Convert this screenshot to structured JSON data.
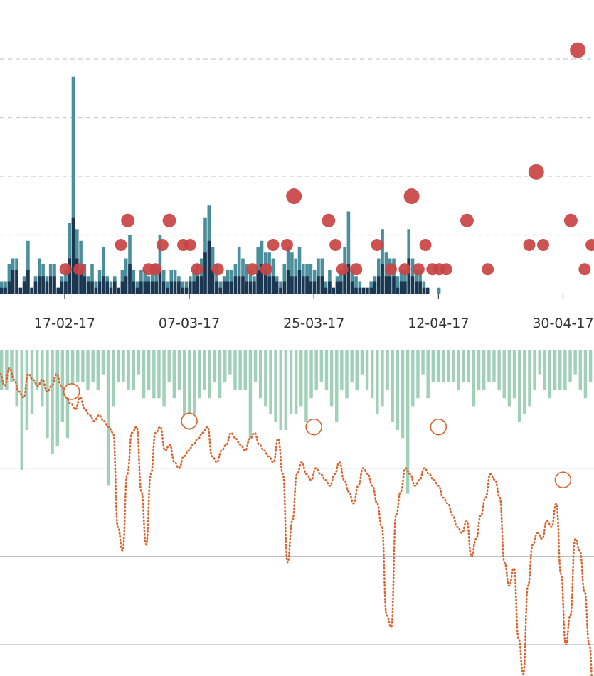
{
  "chart_data": [
    {
      "type": "bar+scatter",
      "x_start": "2017-02-13",
      "x_end": "2017-05-03",
      "x_ticks": [
        {
          "date": "2017-02-17",
          "label": "17-02-17"
        },
        {
          "date": "2017-03-07",
          "label": "07-03-17"
        },
        {
          "date": "2017-03-25",
          "label": "25-03-17"
        },
        {
          "date": "2017-04-12",
          "label": "12-04-17"
        },
        {
          "date": "2017-04-30",
          "label": "30-04-17"
        }
      ],
      "grid": "horizontal dashed",
      "y_bar_range": [
        0,
        40
      ],
      "y_bar_gridlines": [
        10,
        20,
        30,
        40
      ],
      "series": [
        {
          "color": "#4b8e9c",
          "values": [
            2,
            2,
            5,
            6,
            6,
            1,
            3,
            9,
            1,
            3,
            6,
            5,
            3,
            5,
            5,
            1,
            3,
            4,
            12,
            37,
            11,
            9,
            5,
            3,
            5,
            2,
            4,
            8,
            3,
            2,
            3,
            1,
            4,
            6,
            10,
            4,
            2,
            4,
            4,
            3,
            5,
            5,
            10,
            4,
            2,
            4,
            4,
            3,
            2,
            2,
            3,
            4,
            5,
            6,
            13,
            15,
            8,
            5,
            2,
            3,
            4,
            4,
            5,
            8,
            6,
            5,
            4,
            3,
            8,
            9,
            7,
            7,
            6,
            3,
            2,
            5,
            8,
            7,
            6,
            8,
            5,
            5,
            5,
            4,
            6,
            6,
            2,
            4,
            1,
            3,
            4,
            8,
            14,
            4,
            3,
            2,
            1,
            1,
            2,
            3,
            6,
            11,
            7,
            6,
            6,
            3,
            4,
            4,
            11,
            6,
            4,
            4,
            2,
            1,
            0,
            0,
            1
          ]
        },
        {
          "color": "#1b3650",
          "values": [
            1,
            1,
            2,
            4,
            4,
            1,
            2,
            4,
            1,
            2,
            3,
            3,
            2,
            3,
            3,
            1,
            2,
            2,
            6,
            13,
            6,
            4,
            3,
            2,
            2,
            1,
            2,
            3,
            2,
            1,
            2,
            1,
            2,
            3,
            5,
            2,
            1,
            2,
            2,
            2,
            2,
            2,
            4,
            2,
            1,
            2,
            2,
            2,
            1,
            1,
            2,
            2,
            3,
            3,
            7,
            9,
            4,
            2,
            1,
            2,
            2,
            2,
            3,
            3,
            3,
            2,
            2,
            2,
            4,
            5,
            4,
            3,
            3,
            2,
            1,
            2,
            4,
            3,
            3,
            4,
            3,
            3,
            2,
            2,
            3,
            3,
            1,
            2,
            1,
            2,
            2,
            4,
            5,
            2,
            1,
            1,
            1,
            1,
            1,
            2,
            3,
            5,
            3,
            3,
            3,
            1,
            2,
            2,
            6,
            3,
            2,
            2,
            1,
            1,
            0,
            0,
            0
          ]
        }
      ],
      "scatter": {
        "color": "#c94444",
        "points": [
          {
            "date": "2017-02-20",
            "y": 5
          },
          {
            "date": "2017-02-22",
            "y": 5
          },
          {
            "date": "2017-02-28",
            "y": 10
          },
          {
            "date": "2017-03-01",
            "y": 15
          },
          {
            "date": "2017-03-04",
            "y": 5
          },
          {
            "date": "2017-03-05",
            "y": 5
          },
          {
            "date": "2017-03-06",
            "y": 10
          },
          {
            "date": "2017-03-07",
            "y": 15
          },
          {
            "date": "2017-03-09",
            "y": 10
          },
          {
            "date": "2017-03-10",
            "y": 10
          },
          {
            "date": "2017-03-11",
            "y": 5
          },
          {
            "date": "2017-03-14",
            "y": 5
          },
          {
            "date": "2017-03-19",
            "y": 5
          },
          {
            "date": "2017-03-21",
            "y": 5
          },
          {
            "date": "2017-03-22",
            "y": 10
          },
          {
            "date": "2017-03-24",
            "y": 10
          },
          {
            "date": "2017-03-25",
            "y": 20
          },
          {
            "date": "2017-03-30",
            "y": 15
          },
          {
            "date": "2017-03-31",
            "y": 10
          },
          {
            "date": "2017-04-01",
            "y": 5
          },
          {
            "date": "2017-04-03",
            "y": 5
          },
          {
            "date": "2017-04-06",
            "y": 10
          },
          {
            "date": "2017-04-08",
            "y": 5
          },
          {
            "date": "2017-04-10",
            "y": 5
          },
          {
            "date": "2017-04-11",
            "y": 20
          },
          {
            "date": "2017-04-12",
            "y": 5
          },
          {
            "date": "2017-04-13",
            "y": 10
          },
          {
            "date": "2017-04-14",
            "y": 5
          },
          {
            "date": "2017-04-15",
            "y": 5
          },
          {
            "date": "2017-04-16",
            "y": 5
          },
          {
            "date": "2017-04-19",
            "y": 15
          },
          {
            "date": "2017-04-22",
            "y": 5
          },
          {
            "date": "2017-04-28",
            "y": 10
          },
          {
            "date": "2017-04-29",
            "y": 25
          },
          {
            "date": "2017-04-30",
            "y": 10
          },
          {
            "date": "2017-05-04",
            "y": 15
          },
          {
            "date": "2017-05-06",
            "y": 5
          },
          {
            "date": "2017-05-07",
            "y": 10
          },
          {
            "date": "2017-05-05",
            "y": 50
          }
        ]
      }
    },
    {
      "type": "bar+line",
      "bars_direction": "downward from top",
      "y_bar_range": [
        0,
        25
      ],
      "bar_color": "#8fc8ab",
      "bars": [
        5,
        5,
        4,
        7,
        15,
        10,
        8,
        5,
        7,
        11,
        13,
        12,
        9,
        11,
        6,
        4,
        4,
        5,
        4,
        5,
        3,
        17,
        7,
        4,
        4,
        5,
        5,
        3,
        6,
        5,
        6,
        6,
        7,
        4,
        6,
        5,
        9,
        10,
        8,
        6,
        5,
        6,
        4,
        6,
        4,
        3,
        5,
        5,
        5,
        11,
        4,
        6,
        7,
        8,
        9,
        10,
        10,
        8,
        8,
        7,
        9,
        6,
        5,
        4,
        5,
        7,
        9,
        5,
        6,
        4,
        5,
        3,
        5,
        6,
        8,
        7,
        5,
        9,
        10,
        11,
        18,
        7,
        6,
        3,
        6,
        4,
        4,
        4,
        4,
        4,
        5,
        4,
        4,
        7,
        5,
        5,
        4,
        4,
        5,
        6,
        7,
        6,
        9,
        8,
        7,
        5,
        3,
        5,
        6,
        5,
        5,
        5,
        4,
        3,
        5,
        6,
        4
      ],
      "line_color": "#d9642f",
      "line_style": "dotted",
      "y_line_range": [
        0,
        1
      ],
      "line_values": [
        0.96,
        0.94,
        0.97,
        0.95,
        0.93,
        0.92,
        0.96,
        0.95,
        0.94,
        0.95,
        0.93,
        0.94,
        0.96,
        0.94,
        0.92,
        0.91,
        0.9,
        0.92,
        0.9,
        0.89,
        0.88,
        0.89,
        0.88,
        0.87,
        0.86,
        0.7,
        0.66,
        0.79,
        0.86,
        0.87,
        0.76,
        0.67,
        0.79,
        0.86,
        0.87,
        0.83,
        0.84,
        0.81,
        0.8,
        0.82,
        0.83,
        0.84,
        0.85,
        0.86,
        0.87,
        0.82,
        0.81,
        0.83,
        0.84,
        0.86,
        0.85,
        0.84,
        0.83,
        0.85,
        0.86,
        0.84,
        0.83,
        0.82,
        0.81,
        0.85,
        0.79,
        0.64,
        0.71,
        0.79,
        0.81,
        0.79,
        0.78,
        0.8,
        0.79,
        0.78,
        0.77,
        0.79,
        0.81,
        0.78,
        0.76,
        0.74,
        0.77,
        0.8,
        0.79,
        0.77,
        0.74,
        0.7,
        0.55,
        0.53,
        0.72,
        0.76,
        0.8,
        0.79,
        0.77,
        0.78,
        0.8,
        0.79,
        0.78,
        0.77,
        0.75,
        0.74,
        0.72,
        0.7,
        0.69,
        0.71,
        0.65,
        0.68,
        0.72,
        0.75,
        0.79,
        0.78,
        0.75,
        0.64,
        0.6,
        0.63,
        0.51,
        0.45,
        0.6,
        0.67,
        0.69,
        0.68,
        0.71,
        0.7,
        0.74,
        0.62,
        0.5,
        0.55,
        0.68,
        0.66,
        0.59,
        0.5,
        0.39
      ],
      "markers": [
        {
          "date": "2017-02-18",
          "y": 0.93
        },
        {
          "date": "2017-03-07",
          "y": 0.88
        },
        {
          "date": "2017-03-25",
          "y": 0.87
        },
        {
          "date": "2017-04-12",
          "y": 0.87
        },
        {
          "date": "2017-04-30",
          "y": 0.78
        }
      ],
      "gridlines": [
        0.8,
        0.65,
        0.5
      ]
    }
  ]
}
